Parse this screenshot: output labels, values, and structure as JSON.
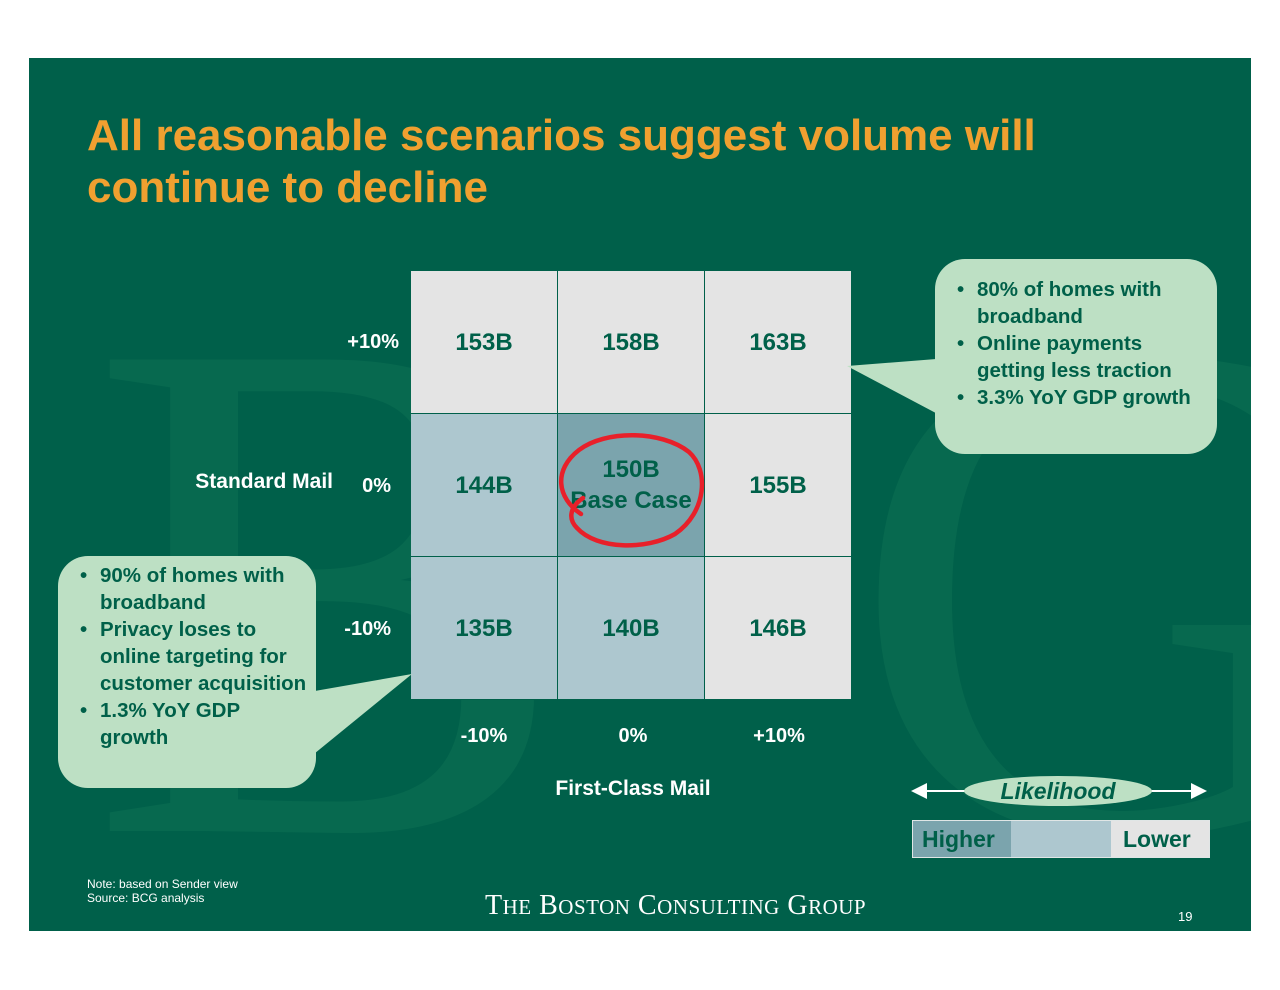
{
  "slide": {
    "title_lines": [
      "All reasonable scenarios suggest volume will",
      "continue to decline"
    ],
    "colors": {
      "background": "#00604a",
      "title": "#f0a030",
      "cell_text": "#006049",
      "bubble": "#bde0c4",
      "annotation": "#e8202a"
    }
  },
  "chart_data": {
    "type": "table",
    "ylabel": "Standard Mail",
    "xlabel": "First-Class Mail",
    "row_labels": [
      "+10%",
      "0%",
      "-10%"
    ],
    "col_labels": [
      "-10%",
      "0%",
      "+10%"
    ],
    "cells": [
      [
        {
          "lines": [
            "153B"
          ],
          "likelihood": "lower"
        },
        {
          "lines": [
            "158B"
          ],
          "likelihood": "lower"
        },
        {
          "lines": [
            "163B"
          ],
          "likelihood": "lower"
        }
      ],
      [
        {
          "lines": [
            "144B"
          ],
          "likelihood": "medium"
        },
        {
          "lines": [
            "150B",
            "Base Case"
          ],
          "likelihood": "higher"
        },
        {
          "lines": [
            "155B"
          ],
          "likelihood": "lower"
        }
      ],
      [
        {
          "lines": [
            "135B"
          ],
          "likelihood": "medium"
        },
        {
          "lines": [
            "140B"
          ],
          "likelihood": "medium"
        },
        {
          "lines": [
            "146B"
          ],
          "likelihood": "lower"
        }
      ]
    ],
    "values_billions": [
      [
        153,
        158,
        163
      ],
      [
        144,
        150,
        155
      ],
      [
        135,
        140,
        146
      ]
    ],
    "circled_cell": "150B Base Case"
  },
  "callouts": {
    "upper": [
      "80% of homes with broadband",
      "Online payments getting less traction",
      "3.3% YoY GDP growth"
    ],
    "lower": [
      "90% of homes with broadband",
      "Privacy loses to online targeting for customer acquisition",
      "1.3% YoY GDP growth"
    ]
  },
  "legend": {
    "title": "Likelihood",
    "higher": "Higher",
    "lower": "Lower",
    "colors": {
      "higher": "#7ba4ad",
      "medium": "#adc7cf",
      "lower": "#e4e4e4"
    }
  },
  "footer": {
    "note": "Note:  based on Sender view",
    "source": "Source: BCG analysis",
    "brand": "The Boston Consulting Group",
    "page_number": "19"
  }
}
